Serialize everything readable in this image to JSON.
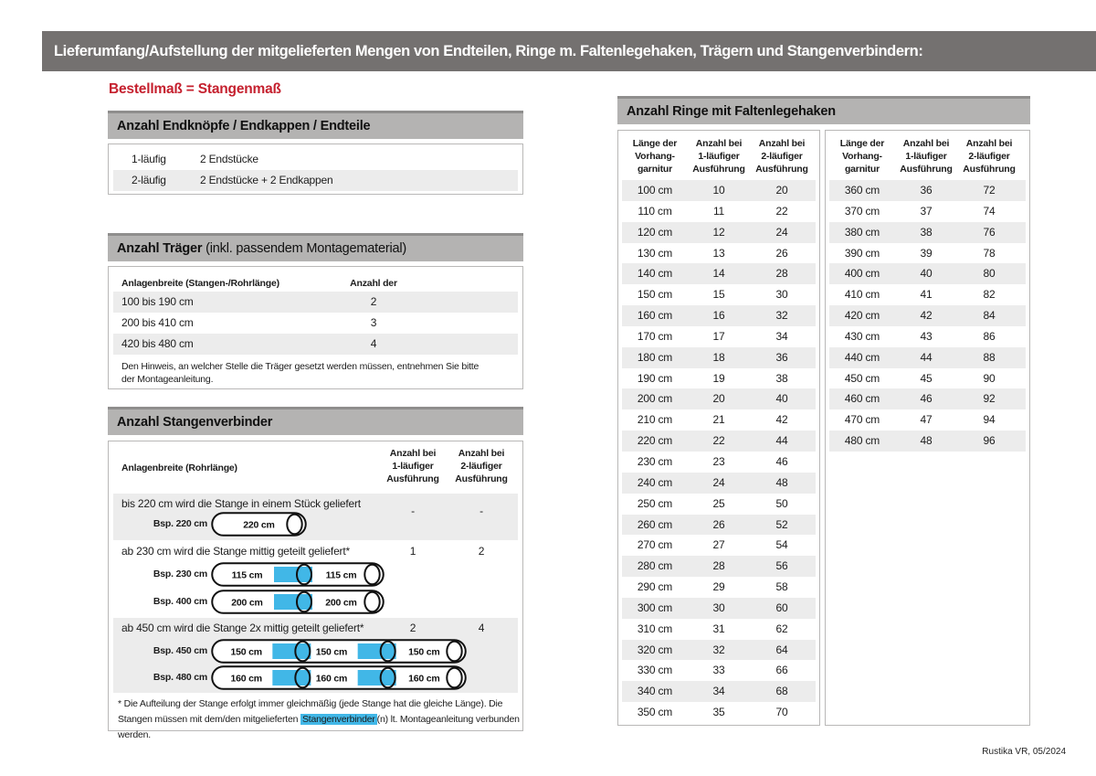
{
  "page": {
    "title": "Lieferumfang/Aufstellung der mitgelieferten Mengen von Endteilen, Ringe m. Faltenlegehaken, Trägern und Stangenverbindern:",
    "subtitle": "Bestellmaß = Stangenmaß",
    "footer": "Rustika VR, 05/2024"
  },
  "colors": {
    "title_bar_gray": "#747170",
    "section_bar_gray": "#b4b3b2",
    "stripe_gray": "#ececec",
    "accent_red": "#c5202e",
    "connector_blue": "#41b7e7"
  },
  "endteile": {
    "title": "Anzahl Endknöpfe / Endkappen / Endteile",
    "rows": [
      {
        "label": "1-läufig",
        "value": "2 Endstücke"
      },
      {
        "label": "2-läufig",
        "value": "2 Endstücke + 2 Endkappen"
      }
    ]
  },
  "traeger": {
    "title_bold": "Anzahl Träger",
    "title_rest": " (inkl. passendem Montagematerial)",
    "col1": "Anlagenbreite (Stangen-/Rohrlänge)",
    "col2": "Anzahl der Träger",
    "rows": [
      {
        "range": "100 bis 190 cm",
        "count": "2"
      },
      {
        "range": "200 bis 410 cm",
        "count": "3"
      },
      {
        "range": "420 bis 480 cm",
        "count": "4"
      }
    ],
    "note": "Den Hinweis, an welcher Stelle die Träger gesetzt werden müssen, entnehmen Sie bitte\nder Montageanleitung."
  },
  "verbinder": {
    "title": "Anzahl Stangenverbinder",
    "col1": "Anlagenbreite (Rohrlänge)",
    "col2": "Anzahl bei\n1-läufiger\nAusführung",
    "col3": "Anzahl bei\n2-läufiger\nAusführung",
    "groups": [
      {
        "text": "bis 220 cm wird die Stange in einem Stück geliefert",
        "count1": "-",
        "count2": "-",
        "examples": [
          {
            "label": "Bsp. 220 cm",
            "segments": [
              "220 cm"
            ]
          }
        ]
      },
      {
        "text": "ab 230 cm wird die Stange mittig geteilt geliefert*",
        "count1": "1",
        "count2": "2",
        "examples": [
          {
            "label": "Bsp. 230 cm",
            "segments": [
              "115 cm",
              "115 cm"
            ]
          },
          {
            "label": "Bsp. 400 cm",
            "segments": [
              "200 cm",
              "200 cm"
            ]
          }
        ]
      },
      {
        "text": "ab 450 cm wird die Stange 2x mittig geteilt geliefert*",
        "count1": "2",
        "count2": "4",
        "examples": [
          {
            "label": "Bsp. 450 cm",
            "segments": [
              "150 cm",
              "150 cm",
              "150 cm"
            ]
          },
          {
            "label": "Bsp. 480 cm",
            "segments": [
              "160 cm",
              "160 cm",
              "160 cm"
            ]
          }
        ]
      }
    ],
    "footnote_pre": "* Die Aufteilung der Stange erfolgt immer gleichmäßig (jede Stange hat die gleiche Länge). Die Stangen müssen mit dem/den mitgelieferten ",
    "footnote_highlight": "Stangenverbinder",
    "footnote_post": "(n) lt. Montageanleitung verbunden werden."
  },
  "ringe": {
    "title": "Anzahl Ringe mit Faltenlegehaken",
    "col1": "Länge der\nVorhang-\ngarnitur",
    "col2": "Anzahl bei\n1-läufiger\nAusführung",
    "col3": "Anzahl bei\n2-läufiger\nAusführung",
    "rows_left": [
      [
        "100 cm",
        "10",
        "20"
      ],
      [
        "110 cm",
        "11",
        "22"
      ],
      [
        "120 cm",
        "12",
        "24"
      ],
      [
        "130 cm",
        "13",
        "26"
      ],
      [
        "140 cm",
        "14",
        "28"
      ],
      [
        "150 cm",
        "15",
        "30"
      ],
      [
        "160 cm",
        "16",
        "32"
      ],
      [
        "170 cm",
        "17",
        "34"
      ],
      [
        "180 cm",
        "18",
        "36"
      ],
      [
        "190 cm",
        "19",
        "38"
      ],
      [
        "200 cm",
        "20",
        "40"
      ],
      [
        "210 cm",
        "21",
        "42"
      ],
      [
        "220 cm",
        "22",
        "44"
      ],
      [
        "230 cm",
        "23",
        "46"
      ],
      [
        "240 cm",
        "24",
        "48"
      ],
      [
        "250 cm",
        "25",
        "50"
      ],
      [
        "260 cm",
        "26",
        "52"
      ],
      [
        "270 cm",
        "27",
        "54"
      ],
      [
        "280 cm",
        "28",
        "56"
      ],
      [
        "290 cm",
        "29",
        "58"
      ],
      [
        "300 cm",
        "30",
        "60"
      ],
      [
        "310 cm",
        "31",
        "62"
      ],
      [
        "320 cm",
        "32",
        "64"
      ],
      [
        "330 cm",
        "33",
        "66"
      ],
      [
        "340 cm",
        "34",
        "68"
      ],
      [
        "350 cm",
        "35",
        "70"
      ]
    ],
    "rows_right": [
      [
        "360 cm",
        "36",
        "72"
      ],
      [
        "370 cm",
        "37",
        "74"
      ],
      [
        "380 cm",
        "38",
        "76"
      ],
      [
        "390 cm",
        "39",
        "78"
      ],
      [
        "400 cm",
        "40",
        "80"
      ],
      [
        "410 cm",
        "41",
        "82"
      ],
      [
        "420 cm",
        "42",
        "84"
      ],
      [
        "430 cm",
        "43",
        "86"
      ],
      [
        "440 cm",
        "44",
        "88"
      ],
      [
        "450 cm",
        "45",
        "90"
      ],
      [
        "460 cm",
        "46",
        "92"
      ],
      [
        "470 cm",
        "47",
        "94"
      ],
      [
        "480 cm",
        "48",
        "96"
      ]
    ]
  }
}
